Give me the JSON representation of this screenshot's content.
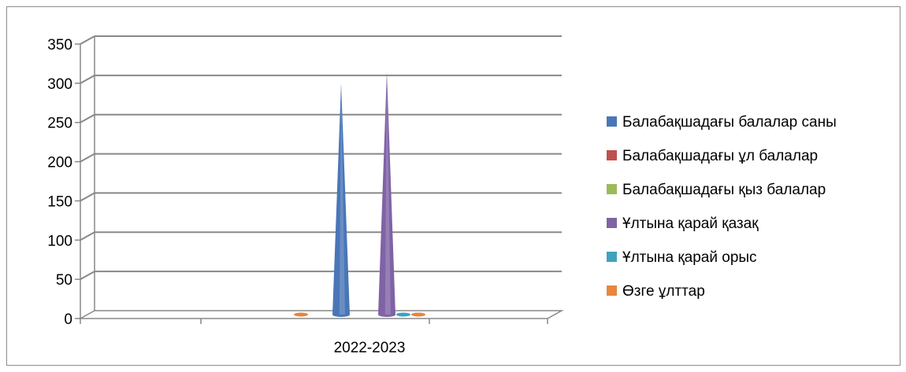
{
  "chart_data": {
    "type": "bar",
    "bar_shape": "cone",
    "three_d": true,
    "categories": [
      "2022-2023"
    ],
    "series": [
      {
        "name": "Балабақшадағы балалар саны",
        "values": [
          290
        ],
        "color": "#4a76b8"
      },
      {
        "name": "Балабақшадағы ұл балалар",
        "values": [
          0
        ],
        "color": "#c0504d"
      },
      {
        "name": "Балабақшадағы қыз балалар",
        "values": [
          0
        ],
        "color": "#9bbb59"
      },
      {
        "name": "Ұлтына қарай қазақ",
        "values": [
          305
        ],
        "color": "#7f63a5"
      },
      {
        "name": "Ұлтына қарай орыс",
        "values": [
          0
        ],
        "color": "#3fa3bd"
      },
      {
        "name": "Өзге ұлттар",
        "values": [
          0
        ],
        "color": "#e7863c"
      }
    ],
    "y_ticks": [
      "0",
      "50",
      "100",
      "150",
      "200",
      "250",
      "300",
      "350"
    ],
    "ylim": [
      0,
      350
    ],
    "grid": true,
    "legend_position": "right",
    "title": "",
    "xlabel": "",
    "ylabel": ""
  }
}
